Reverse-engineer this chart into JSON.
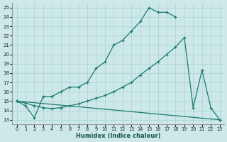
{
  "xlabel": "Humidex (Indice chaleur)",
  "xlim": [
    -0.5,
    23.5
  ],
  "ylim": [
    12.5,
    25.5
  ],
  "yticks": [
    13,
    14,
    15,
    16,
    17,
    18,
    19,
    20,
    21,
    22,
    23,
    24,
    25
  ],
  "xticks": [
    0,
    1,
    2,
    3,
    4,
    5,
    6,
    7,
    8,
    9,
    10,
    11,
    12,
    13,
    14,
    15,
    16,
    17,
    18,
    19,
    20,
    21,
    22,
    23
  ],
  "background_color": "#cce8e8",
  "grid_color": "#b0d4d4",
  "line_color": "#1a7a6e",
  "line1_x": [
    0,
    1,
    2,
    3,
    4,
    5,
    6,
    7,
    8,
    9,
    10,
    11,
    12,
    13,
    14,
    15,
    16,
    17,
    18
  ],
  "line1_y": [
    15.0,
    14.5,
    13.2,
    15.5,
    15.5,
    16.0,
    16.5,
    16.5,
    17.0,
    18.5,
    19.2,
    21.0,
    21.5,
    22.5,
    23.5,
    25.0,
    24.5,
    24.5,
    24.0
  ],
  "line2_x": [
    0,
    23
  ],
  "line2_y": [
    15.0,
    13.0
  ],
  "line3_x": [
    0,
    1,
    2,
    3,
    4,
    5,
    6,
    7,
    8,
    9,
    10,
    11,
    12,
    13,
    14,
    15,
    16,
    17,
    18,
    19,
    20,
    21,
    22,
    23
  ],
  "line3_y": [
    15.0,
    14.8,
    14.5,
    14.3,
    14.2,
    14.3,
    14.5,
    14.7,
    15.0,
    15.3,
    15.6,
    16.0,
    16.5,
    17.0,
    17.8,
    18.5,
    19.2,
    20.0,
    20.8,
    21.8,
    14.3,
    18.3,
    14.3,
    13.0
  ]
}
